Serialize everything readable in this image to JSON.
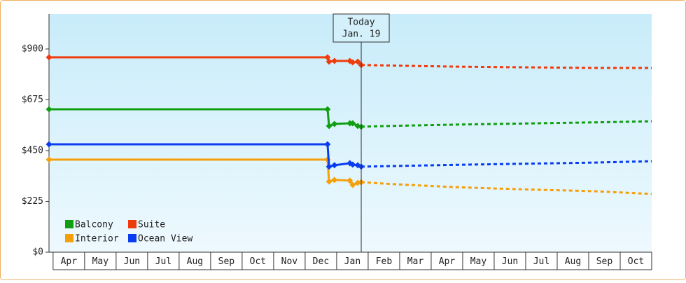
{
  "chart_data": {
    "type": "line",
    "x": [
      -0.13,
      8.71,
      8.76,
      8.93,
      9.42,
      9.51,
      9.67,
      9.78,
      10.98,
      12.76,
      14.98,
      17.2,
      19.0
    ],
    "series": [
      {
        "name": "Balcony",
        "color": "#119e11",
        "values": [
          633,
          633,
          559,
          568,
          571,
          571,
          559,
          556,
          null,
          null,
          null,
          null,
          null
        ],
        "forecast": [
          null,
          null,
          null,
          null,
          null,
          null,
          null,
          556,
          560,
          565,
          570,
          575,
          580
        ]
      },
      {
        "name": "Suite",
        "color": "#f03c0c",
        "values": [
          863,
          863,
          844,
          847,
          847,
          841,
          844,
          829,
          null,
          null,
          null,
          null,
          null
        ],
        "forecast": [
          null,
          null,
          null,
          null,
          null,
          null,
          null,
          829,
          826,
          822,
          819,
          816,
          816
        ]
      },
      {
        "name": "Interior",
        "color": "#f5a00a",
        "values": [
          410,
          410,
          313,
          320,
          317,
          298,
          307,
          310,
          null,
          null,
          null,
          null,
          null
        ],
        "forecast": [
          null,
          null,
          null,
          null,
          null,
          null,
          null,
          310,
          300,
          288,
          278,
          270,
          258
        ]
      },
      {
        "name": "Ocean View",
        "color": "#0a3cf0",
        "values": [
          478,
          478,
          379,
          385,
          394,
          388,
          385,
          379,
          null,
          null,
          null,
          null,
          null
        ],
        "forecast": [
          null,
          null,
          null,
          null,
          null,
          null,
          null,
          379,
          382,
          387,
          392,
          397,
          403
        ]
      }
    ],
    "xlim": [
      -0.13,
      19.0
    ],
    "xticks": [
      {
        "value": 0,
        "label": "Apr"
      },
      {
        "value": 1,
        "label": "May"
      },
      {
        "value": 2,
        "label": "Jun"
      },
      {
        "value": 3,
        "label": "Jul"
      },
      {
        "value": 4,
        "label": "Aug"
      },
      {
        "value": 5,
        "label": "Sep"
      },
      {
        "value": 6,
        "label": "Oct"
      },
      {
        "value": 7,
        "label": "Nov"
      },
      {
        "value": 8,
        "label": "Dec"
      },
      {
        "value": 9,
        "label": "Jan"
      },
      {
        "value": 10,
        "label": "Feb"
      },
      {
        "value": 11,
        "label": "Mar"
      },
      {
        "value": 12,
        "label": "Apr"
      },
      {
        "value": 13,
        "label": "May"
      },
      {
        "value": 14,
        "label": "Jun"
      },
      {
        "value": 15,
        "label": "Jul"
      },
      {
        "value": 16,
        "label": "Aug"
      },
      {
        "value": 17,
        "label": "Sep"
      },
      {
        "value": 18,
        "label": "Oct"
      }
    ],
    "ylim": [
      0,
      1055
    ],
    "yticks": [
      {
        "value": 0,
        "label": "$0"
      },
      {
        "value": 225,
        "label": "$225"
      },
      {
        "value": 450,
        "label": "$450"
      },
      {
        "value": 675,
        "label": "$675"
      },
      {
        "value": 900,
        "label": "$900"
      }
    ],
    "today": {
      "x": 9.78,
      "label": [
        "Today",
        "Jan. 19"
      ]
    }
  }
}
